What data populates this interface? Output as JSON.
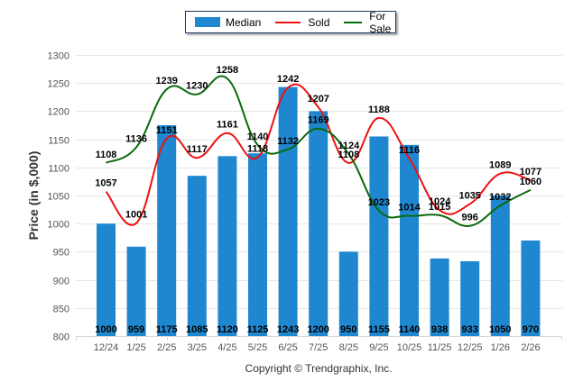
{
  "chart_data": {
    "type": "bar",
    "title": "",
    "xlabel": "",
    "ylabel": "Price (in $,000)",
    "ylim": [
      800,
      1300
    ],
    "yticks": [
      800,
      850,
      900,
      950,
      1000,
      1050,
      1100,
      1150,
      1200,
      1250,
      1300
    ],
    "grid": true,
    "legend_position": "top-center",
    "categories": [
      "12/24",
      "1/25",
      "2/25",
      "3/25",
      "4/25",
      "5/25",
      "6/25",
      "7/25",
      "8/25",
      "9/25",
      "10/25",
      "11/25",
      "12/25",
      "1/26",
      "2/26"
    ],
    "series": [
      {
        "name": "Median",
        "type": "bar",
        "color": "#1f87d0",
        "values": [
          1000,
          959,
          1175,
          1085,
          1120,
          1125,
          1243,
          1200,
          950,
          1155,
          1140,
          938,
          933,
          1050,
          970
        ]
      },
      {
        "name": "Sold",
        "type": "line",
        "color": "#ee1111",
        "values": [
          1057,
          1001,
          1151,
          1117,
          1161,
          1118,
          1242,
          1207,
          1108,
          1188,
          1116,
          1024,
          1035,
          1089,
          1077
        ]
      },
      {
        "name": "For Sale",
        "type": "line",
        "color": "#0a6a0a",
        "values": [
          1108,
          1136,
          1239,
          1230,
          1258,
          1140,
          1132,
          1169,
          1124,
          1023,
          1014,
          1015,
          996,
          1032,
          1060
        ]
      }
    ]
  },
  "legend": {
    "median_label": "Median",
    "sold_label": "Sold",
    "forsale_label": "For Sale"
  },
  "footer": {
    "copyright": "Copyright © Trendgraphix, Inc."
  }
}
